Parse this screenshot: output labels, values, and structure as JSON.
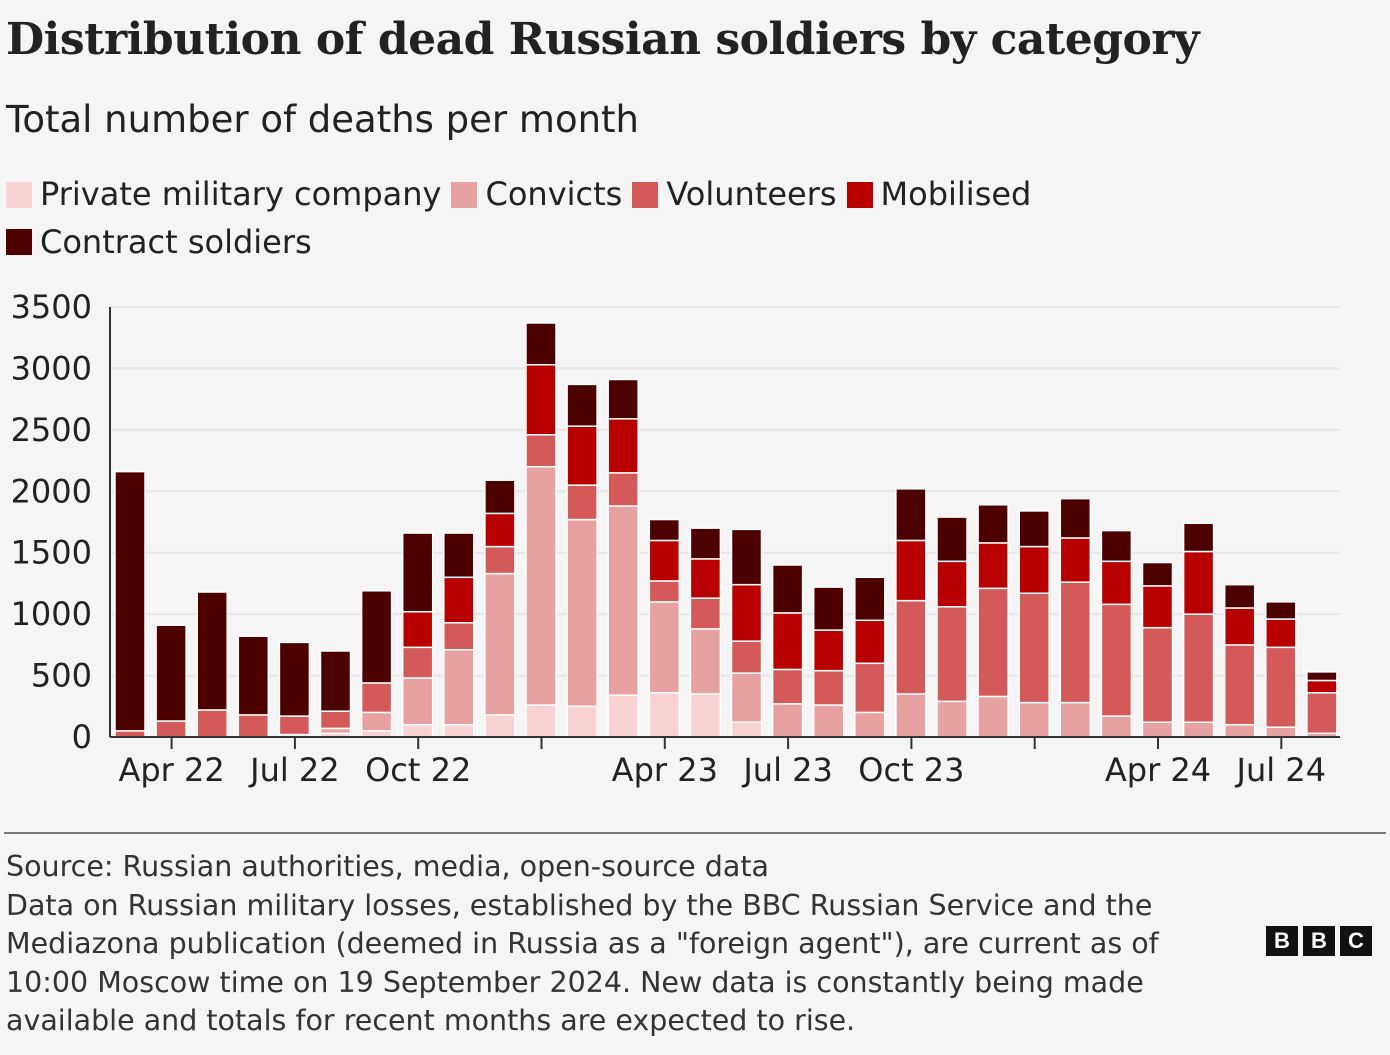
{
  "colors": {
    "Private military company": "#f9d3d3",
    "Convicts": "#e8a1a1",
    "Volunteers": "#d45a5a",
    "Mobilised": "#b80000",
    "Contract soldiers": "#4d0000"
  },
  "chart_data": {
    "type": "bar",
    "stacked": true,
    "title": "Distribution of dead Russian soldiers by category",
    "subtitle": "Total number of deaths per month",
    "ylim": [
      0,
      3500
    ],
    "yticks": [
      0,
      500,
      1000,
      1500,
      2000,
      2500,
      3000,
      3500
    ],
    "grid": true,
    "legend_position": "top",
    "categories": [
      "Mar 22",
      "Apr 22",
      "May 22",
      "Jun 22",
      "Jul 22",
      "Aug 22",
      "Sep 22",
      "Oct 22",
      "Nov 22",
      "Dec 22",
      "Jan 23",
      "Feb 23",
      "Mar 23",
      "Apr 23",
      "May 23",
      "Jun 23",
      "Jul 23",
      "Aug 23",
      "Sep 23",
      "Oct 23",
      "Nov 23",
      "Dec 23",
      "Jan 24",
      "Feb 24",
      "Mar 24",
      "Apr 24",
      "May 24",
      "Jun 24",
      "Jul 24",
      "Aug 24"
    ],
    "xtick_labels": [
      {
        "index": 1,
        "label": "Apr 22"
      },
      {
        "index": 4,
        "label": "Jul 22"
      },
      {
        "index": 7,
        "label": "Oct 22"
      },
      {
        "index": 10,
        "label": ""
      },
      {
        "index": 13,
        "label": "Apr 23"
      },
      {
        "index": 16,
        "label": "Jul 23"
      },
      {
        "index": 19,
        "label": "Oct 23"
      },
      {
        "index": 22,
        "label": ""
      },
      {
        "index": 25,
        "label": "Apr 24"
      },
      {
        "index": 28,
        "label": "Jul 24"
      }
    ],
    "series": [
      {
        "name": "Private military company",
        "values": [
          0,
          0,
          0,
          0,
          20,
          30,
          50,
          100,
          100,
          180,
          260,
          250,
          340,
          360,
          350,
          120,
          0,
          0,
          0,
          0,
          0,
          0,
          0,
          0,
          0,
          0,
          0,
          0,
          0,
          0
        ]
      },
      {
        "name": "Convicts",
        "values": [
          0,
          0,
          0,
          0,
          0,
          40,
          150,
          380,
          610,
          1150,
          1940,
          1520,
          1540,
          740,
          530,
          400,
          270,
          260,
          200,
          350,
          290,
          330,
          280,
          280,
          170,
          120,
          120,
          100,
          80,
          30
        ]
      },
      {
        "name": "Volunteers",
        "values": [
          50,
          130,
          220,
          180,
          150,
          140,
          240,
          250,
          220,
          220,
          260,
          280,
          270,
          170,
          250,
          260,
          280,
          280,
          400,
          760,
          770,
          880,
          890,
          980,
          910,
          770,
          880,
          650,
          650,
          330
        ]
      },
      {
        "name": "Mobilised",
        "values": [
          0,
          0,
          0,
          0,
          0,
          0,
          0,
          290,
          370,
          270,
          570,
          480,
          440,
          330,
          320,
          460,
          460,
          330,
          350,
          490,
          370,
          370,
          380,
          360,
          350,
          340,
          510,
          300,
          230,
          100
        ]
      },
      {
        "name": "Contract soldiers",
        "values": [
          2110,
          780,
          960,
          640,
          600,
          490,
          750,
          640,
          360,
          270,
          340,
          340,
          320,
          170,
          250,
          450,
          390,
          350,
          350,
          420,
          360,
          310,
          290,
          320,
          250,
          190,
          230,
          190,
          140,
          70
        ]
      }
    ]
  },
  "footer": {
    "source": "Source: Russian authorities, media, open-source data",
    "note_lines": [
      "Data on Russian military losses, established by the BBC Russian Service and the",
      "Mediazona publication (deemed in Russia as a \"foreign agent\"), are current as of",
      "10:00 Moscow time on 19 September 2024. New data is constantly being made",
      "available and totals for recent months are expected to rise."
    ]
  },
  "logo": {
    "letters": [
      "B",
      "B",
      "C"
    ]
  }
}
